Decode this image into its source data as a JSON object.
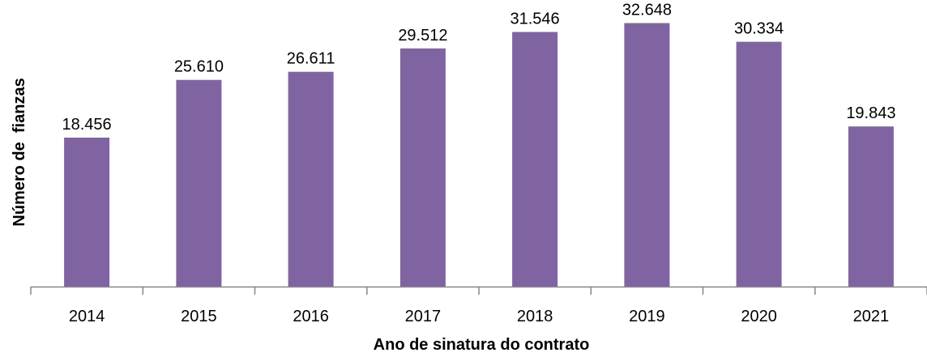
{
  "chart_data": {
    "type": "bar",
    "title": "",
    "xlabel": "Ano de sinatura do contrato",
    "ylabel": "Número de  fianzas",
    "categories": [
      "2014",
      "2015",
      "2016",
      "2017",
      "2018",
      "2019",
      "2020",
      "2021"
    ],
    "values": [
      18456,
      25610,
      26611,
      29512,
      31546,
      32648,
      30334,
      19843
    ],
    "value_labels": [
      "18.456",
      "25.610",
      "26.611",
      "29.512",
      "31.546",
      "32.648",
      "30.334",
      "19.843"
    ],
    "ylim": [
      0,
      33500
    ],
    "grid": false,
    "legend": "none",
    "bar_color": "#8064A2",
    "axis_color": "#868686"
  }
}
